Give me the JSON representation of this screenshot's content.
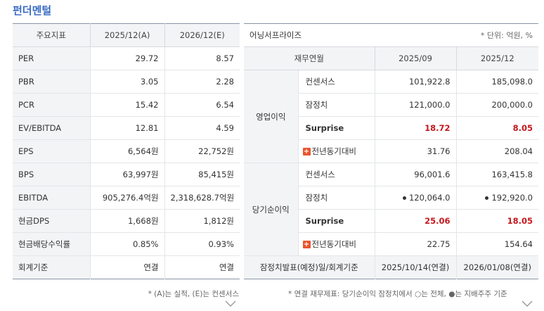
{
  "title": "펀더멘털",
  "left": {
    "headers": [
      "주요지표",
      "2025/12(A)",
      "2026/12(E)"
    ],
    "rows": [
      {
        "label": "PER",
        "a": "29.72",
        "e": "8.57"
      },
      {
        "label": "PBR",
        "a": "3.05",
        "e": "2.28"
      },
      {
        "label": "PCR",
        "a": "15.42",
        "e": "6.54"
      },
      {
        "label": "EV/EBITDA",
        "a": "12.81",
        "e": "4.59"
      },
      {
        "label": "EPS",
        "a": "6,564원",
        "e": "22,752원"
      },
      {
        "label": "BPS",
        "a": "63,997원",
        "e": "85,415원"
      },
      {
        "label": "EBITDA",
        "a": "905,276.4억원",
        "e": "2,318,628.7억원"
      },
      {
        "label": "현금DPS",
        "a": "1,668원",
        "e": "1,812원"
      },
      {
        "label": "현금배당수익률",
        "a": "0.85%",
        "e": "0.93%"
      },
      {
        "label": "회계기준",
        "a": "연결",
        "e": "연결"
      }
    ],
    "note": "* (A)는 실적, (E)는 컨센서스"
  },
  "right": {
    "caption": "어닝서프라이즈",
    "unit": "* 단위: 억원, %",
    "headers": [
      "재무연월",
      "2025/09",
      "2025/12"
    ],
    "groups": [
      {
        "name": "영업이익",
        "rows": [
          {
            "label": "컨센서스",
            "v1": "101,922.8",
            "v2": "185,098.0"
          },
          {
            "label": "잠정치",
            "v1": "121,000.0",
            "v2": "200,000.0"
          },
          {
            "label": "Surprise",
            "v1": "18.72",
            "v2": "8.05"
          },
          {
            "label": "전년동기대비",
            "v1": "31.76",
            "v2": "208.04"
          }
        ]
      },
      {
        "name": "당기순이익",
        "rows": [
          {
            "label": "컨센서스",
            "v1": "96,001.6",
            "v2": "163,415.8"
          },
          {
            "label": "잠정치",
            "v1": "120,064.0",
            "v2": "192,920.0"
          },
          {
            "label": "Surprise",
            "v1": "25.06",
            "v2": "18.05"
          },
          {
            "label": "전년동기대비",
            "v1": "22.75",
            "v2": "154.64"
          }
        ]
      }
    ],
    "footer": {
      "label": "잠정치발표(예정)일/회계기준",
      "v1": "2025/10/14(연결)",
      "v2": "2026/01/08(연결)"
    },
    "note": "* 연결 재무제표: 당기순이익 잠정치에서 ○는 전체, ●는 지배주주 기준"
  },
  "colors": {
    "title": "#3b6cc4",
    "surprise": "#c4161c",
    "plus": "#e8552e"
  },
  "icons": [
    "plus-icon",
    "dot-icon",
    "chevron-down-icon"
  ]
}
